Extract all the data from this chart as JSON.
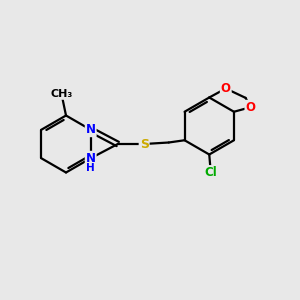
{
  "background_color": "#e8e8e8",
  "bond_color": "#000000",
  "bond_width": 1.6,
  "atom_colors": {
    "N": "#0000ff",
    "S": "#ccaa00",
    "O": "#ff0000",
    "Cl": "#00aa00",
    "C": "#000000",
    "H": "#000000"
  },
  "font_size": 8.5,
  "fig_size": [
    3.0,
    3.0
  ],
  "dpi": 100
}
